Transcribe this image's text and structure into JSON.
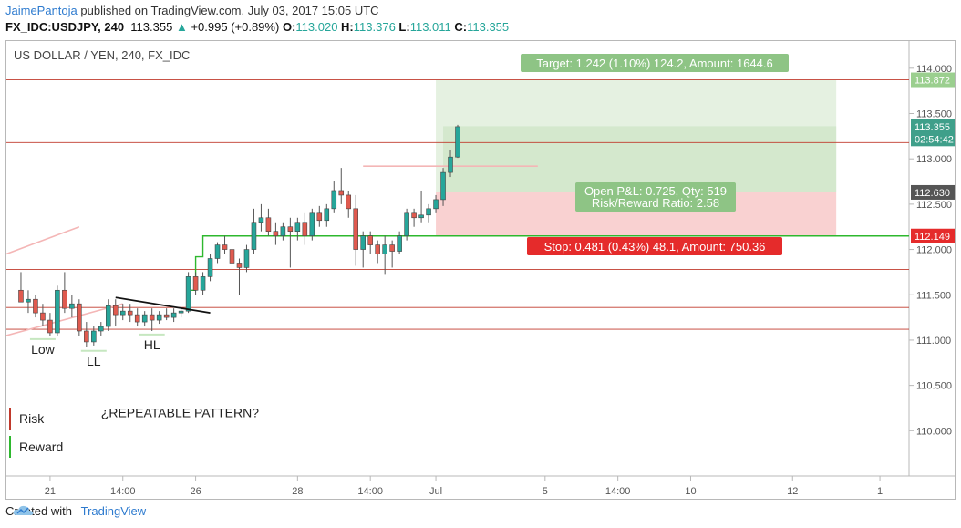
{
  "header": {
    "author": "JaimePantoja",
    "published_text": "published on TradingView.com, July 03, 2017 15:05 UTC",
    "symbol": "FX_IDC:USDJPY, 240",
    "last": "113.355",
    "change": "+0.995 (+0.89%)",
    "o_label": "O:",
    "o": "113.020",
    "h_label": "H:",
    "h": "113.376",
    "l_label": "L:",
    "l": "113.011",
    "c_label": "C:",
    "c": "113.355"
  },
  "footer": {
    "created_with": "Created with",
    "brand": "TradingView",
    "logo_icon": "tradingview-cloud-icon"
  },
  "colors": {
    "up": "#26a69a",
    "down": "#e05a4f",
    "target_box": "#c6e0bd",
    "stop_box": "#f8c9c9",
    "red_line": "#c0392b",
    "green_line": "#2eb82e"
  },
  "chart_data": {
    "type": "candlestick",
    "title": "US DOLLAR / YEN, 240, FX_IDC",
    "xlabel": "",
    "ylabel": "",
    "ylim": [
      109.5,
      114.3
    ],
    "xlim": [
      -2,
      122
    ],
    "y_ticks": [
      "110.000",
      "110.500",
      "111.000",
      "111.500",
      "112.000",
      "112.500",
      "113.000",
      "113.500",
      "114.000"
    ],
    "x_ticks": [
      {
        "i": 4,
        "label": "21"
      },
      {
        "i": 14,
        "label": "14:00"
      },
      {
        "i": 24,
        "label": "26"
      },
      {
        "i": 38,
        "label": "28"
      },
      {
        "i": 48,
        "label": "14:00"
      },
      {
        "i": 57,
        "label": "Jul"
      },
      {
        "i": 72,
        "label": "5"
      },
      {
        "i": 82,
        "label": "14:00"
      },
      {
        "i": 92,
        "label": "10"
      },
      {
        "i": 106,
        "label": "12"
      },
      {
        "i": 118,
        "label": "1"
      }
    ],
    "candles": [
      {
        "o": 111.55,
        "h": 111.75,
        "l": 111.45,
        "c": 111.42
      },
      {
        "o": 111.42,
        "h": 111.55,
        "l": 111.3,
        "c": 111.45
      },
      {
        "o": 111.45,
        "h": 111.5,
        "l": 111.25,
        "c": 111.3
      },
      {
        "o": 111.3,
        "h": 111.4,
        "l": 111.15,
        "c": 111.22
      },
      {
        "o": 111.22,
        "h": 111.3,
        "l": 111.05,
        "c": 111.08
      },
      {
        "o": 111.08,
        "h": 111.6,
        "l": 111.05,
        "c": 111.55
      },
      {
        "o": 111.55,
        "h": 111.75,
        "l": 111.3,
        "c": 111.35
      },
      {
        "o": 111.35,
        "h": 111.5,
        "l": 111.25,
        "c": 111.4
      },
      {
        "o": 111.4,
        "h": 111.45,
        "l": 111.05,
        "c": 111.1
      },
      {
        "o": 111.1,
        "h": 111.2,
        "l": 110.92,
        "c": 110.98
      },
      {
        "o": 110.98,
        "h": 111.15,
        "l": 110.94,
        "c": 111.1
      },
      {
        "o": 111.1,
        "h": 111.2,
        "l": 111.05,
        "c": 111.15
      },
      {
        "o": 111.15,
        "h": 111.45,
        "l": 111.1,
        "c": 111.38
      },
      {
        "o": 111.38,
        "h": 111.45,
        "l": 111.15,
        "c": 111.28
      },
      {
        "o": 111.28,
        "h": 111.4,
        "l": 111.22,
        "c": 111.32
      },
      {
        "o": 111.32,
        "h": 111.4,
        "l": 111.2,
        "c": 111.28
      },
      {
        "o": 111.28,
        "h": 111.35,
        "l": 111.15,
        "c": 111.2
      },
      {
        "o": 111.2,
        "h": 111.32,
        "l": 111.15,
        "c": 111.28
      },
      {
        "o": 111.28,
        "h": 111.35,
        "l": 111.1,
        "c": 111.22
      },
      {
        "o": 111.22,
        "h": 111.32,
        "l": 111.18,
        "c": 111.28
      },
      {
        "o": 111.28,
        "h": 111.35,
        "l": 111.22,
        "c": 111.25
      },
      {
        "o": 111.25,
        "h": 111.35,
        "l": 111.2,
        "c": 111.3
      },
      {
        "o": 111.3,
        "h": 111.35,
        "l": 111.25,
        "c": 111.32
      },
      {
        "o": 111.32,
        "h": 111.75,
        "l": 111.3,
        "c": 111.7
      },
      {
        "o": 111.7,
        "h": 111.75,
        "l": 111.5,
        "c": 111.55
      },
      {
        "o": 111.55,
        "h": 111.75,
        "l": 111.5,
        "c": 111.7
      },
      {
        "o": 111.7,
        "h": 111.95,
        "l": 111.65,
        "c": 111.9
      },
      {
        "o": 111.9,
        "h": 112.08,
        "l": 111.85,
        "c": 112.05
      },
      {
        "o": 112.05,
        "h": 112.15,
        "l": 111.95,
        "c": 112.0
      },
      {
        "o": 112.0,
        "h": 112.05,
        "l": 111.78,
        "c": 111.85
      },
      {
        "o": 111.85,
        "h": 111.9,
        "l": 111.5,
        "c": 111.8
      },
      {
        "o": 111.8,
        "h": 112.05,
        "l": 111.75,
        "c": 112.0
      },
      {
        "o": 112.0,
        "h": 112.45,
        "l": 111.95,
        "c": 112.3
      },
      {
        "o": 112.3,
        "h": 112.5,
        "l": 112.2,
        "c": 112.35
      },
      {
        "o": 112.35,
        "h": 112.45,
        "l": 112.15,
        "c": 112.2
      },
      {
        "o": 112.2,
        "h": 112.3,
        "l": 112.05,
        "c": 112.15
      },
      {
        "o": 112.15,
        "h": 112.3,
        "l": 112.1,
        "c": 112.25
      },
      {
        "o": 112.25,
        "h": 112.35,
        "l": 111.8,
        "c": 112.2
      },
      {
        "o": 112.2,
        "h": 112.35,
        "l": 112.1,
        "c": 112.3
      },
      {
        "o": 112.3,
        "h": 112.4,
        "l": 112.05,
        "c": 112.15
      },
      {
        "o": 112.15,
        "h": 112.45,
        "l": 112.1,
        "c": 112.4
      },
      {
        "o": 112.4,
        "h": 112.48,
        "l": 112.25,
        "c": 112.32
      },
      {
        "o": 112.32,
        "h": 112.5,
        "l": 112.25,
        "c": 112.45
      },
      {
        "o": 112.45,
        "h": 112.75,
        "l": 112.4,
        "c": 112.65
      },
      {
        "o": 112.65,
        "h": 112.9,
        "l": 112.5,
        "c": 112.6
      },
      {
        "o": 112.6,
        "h": 112.65,
        "l": 112.35,
        "c": 112.45
      },
      {
        "o": 112.45,
        "h": 112.6,
        "l": 111.82,
        "c": 112.0
      },
      {
        "o": 112.0,
        "h": 112.2,
        "l": 111.8,
        "c": 112.15
      },
      {
        "o": 112.15,
        "h": 112.2,
        "l": 111.95,
        "c": 112.05
      },
      {
        "o": 112.05,
        "h": 112.1,
        "l": 111.85,
        "c": 111.95
      },
      {
        "o": 111.95,
        "h": 112.15,
        "l": 111.72,
        "c": 112.05
      },
      {
        "o": 112.05,
        "h": 112.1,
        "l": 111.8,
        "c": 111.98
      },
      {
        "o": 111.98,
        "h": 112.2,
        "l": 111.95,
        "c": 112.15
      },
      {
        "o": 112.15,
        "h": 112.45,
        "l": 112.1,
        "c": 112.4
      },
      {
        "o": 112.4,
        "h": 112.45,
        "l": 112.25,
        "c": 112.35
      },
      {
        "o": 112.35,
        "h": 112.65,
        "l": 112.3,
        "c": 112.38
      },
      {
        "o": 112.38,
        "h": 112.5,
        "l": 112.3,
        "c": 112.45
      },
      {
        "o": 112.45,
        "h": 112.6,
        "l": 112.4,
        "c": 112.55
      },
      {
        "o": 112.55,
        "h": 112.9,
        "l": 112.48,
        "c": 112.85
      },
      {
        "o": 112.85,
        "h": 113.1,
        "l": 112.8,
        "c": 113.02
      },
      {
        "o": 113.02,
        "h": 113.376,
        "l": 113.011,
        "c": 113.355
      }
    ],
    "position": {
      "entry": 112.63,
      "target": 113.872,
      "stop": 112.149,
      "start_i": 57,
      "end_i": 112,
      "target_label": "Target: 1.242 (1.10%) 124.2, Amount: 1644.6",
      "stop_label": "Stop: 0.481 (0.43%) 48.1, Amount: 750.36",
      "pnl_label": "Open P&L: 0.725, Qty: 519",
      "rr_label": "Risk/Reward Ratio: 2.58"
    },
    "price_tags": [
      {
        "value": 113.872,
        "label": "113.872",
        "kind": "target"
      },
      {
        "value": 113.355,
        "label": "113.355",
        "kind": "last"
      },
      {
        "value": 113.22,
        "label": "02:54:42",
        "kind": "timer"
      },
      {
        "value": 112.63,
        "label": "112.630",
        "kind": "entry"
      },
      {
        "value": 112.149,
        "label": "112.149",
        "kind": "stop"
      }
    ],
    "hlines": [
      {
        "value": 113.872,
        "color": "red"
      },
      {
        "value": 113.18,
        "color": "red"
      },
      {
        "value": 111.78,
        "color": "red"
      },
      {
        "value": 111.36,
        "color": "red"
      },
      {
        "value": 111.12,
        "color": "red"
      }
    ],
    "step_line": [
      {
        "i": 23,
        "v": 111.34
      },
      {
        "i": 23,
        "v": 111.55
      },
      {
        "i": 24,
        "v": 111.55
      },
      {
        "i": 24,
        "v": 111.92
      },
      {
        "i": 25,
        "v": 111.92
      },
      {
        "i": 25,
        "v": 112.149
      },
      {
        "i": 122,
        "v": 112.149
      }
    ],
    "trendline": {
      "i1": 13,
      "v1": 111.47,
      "i2": 26,
      "v2": 111.3
    },
    "pink_lines": [
      {
        "i1": -2,
        "v1": 111.95,
        "i2": 8,
        "v2": 112.25
      },
      {
        "i1": -2,
        "v1": 111.05,
        "i2": 14,
        "v2": 111.4
      },
      {
        "i1": 47,
        "v1": 112.92,
        "i2": 71,
        "v2": 112.92
      }
    ],
    "annotations": [
      {
        "text": "Low",
        "i": 3,
        "v": 110.85,
        "underline": true
      },
      {
        "text": "LL",
        "i": 10,
        "v": 110.72,
        "underline": true
      },
      {
        "text": "HL",
        "i": 18,
        "v": 110.9,
        "underline": true
      },
      {
        "text": "¿REPEATABLE PATTERN?",
        "i": 11,
        "v": 110.15,
        "underline": false
      }
    ],
    "legend": [
      {
        "label": "Risk",
        "color": "red"
      },
      {
        "label": "Reward",
        "color": "green"
      }
    ],
    "legend_position": "bottom-left",
    "grid": false
  }
}
